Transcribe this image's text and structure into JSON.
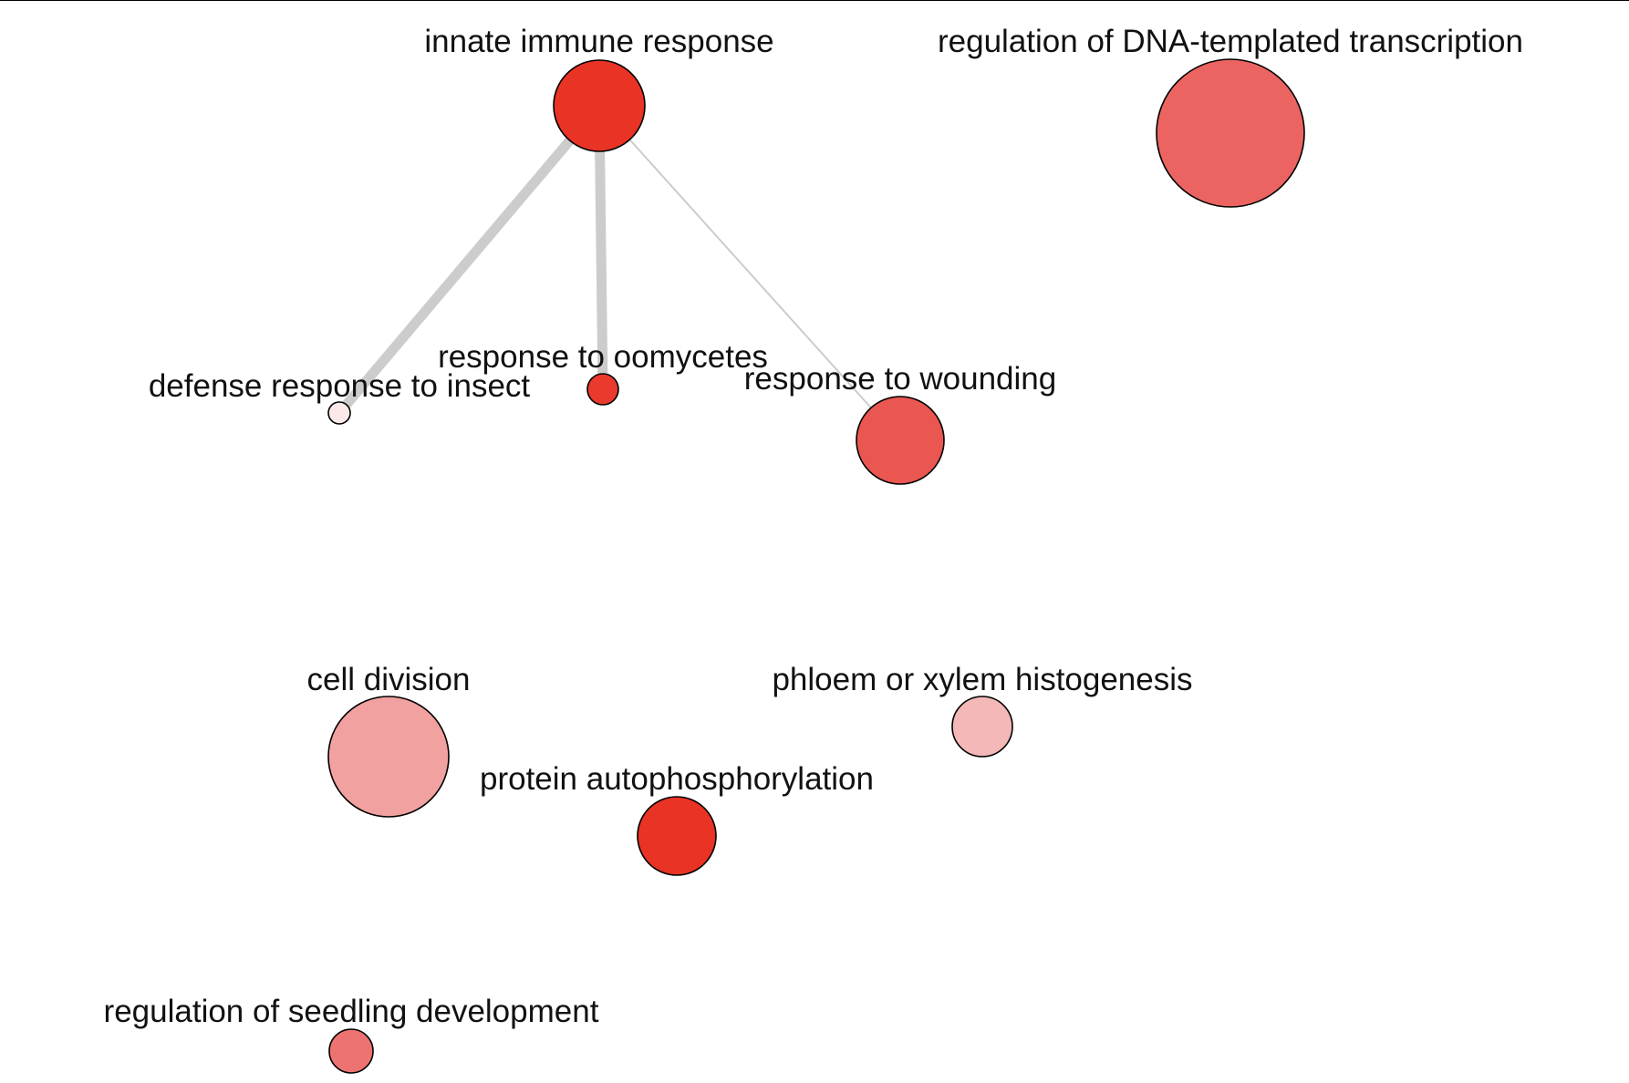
{
  "diagram": {
    "type": "network",
    "nodes": [
      {
        "id": "innate-immune-response",
        "label": "innate immune response",
        "color": "#e93325"
      },
      {
        "id": "regulation-of-dna-templated-transcription",
        "label": "regulation of DNA-templated transcription",
        "color": "#ec6461"
      },
      {
        "id": "defense-response-to-insect",
        "label": "defense response to insect",
        "color": "#fbe8e8"
      },
      {
        "id": "response-to-oomycetes",
        "label": "response to oomycetes",
        "color": "#ea3a2d"
      },
      {
        "id": "response-to-wounding",
        "label": "response to wounding",
        "color": "#ea5650"
      },
      {
        "id": "cell-division",
        "label": "cell division",
        "color": "#f1a19f"
      },
      {
        "id": "phloem-or-xylem-histogenesis",
        "label": "phloem or xylem histogenesis",
        "color": "#f3b8b7"
      },
      {
        "id": "protein-autophosphorylation",
        "label": "protein autophosphorylation",
        "color": "#e93325"
      },
      {
        "id": "regulation-of-seedling-development",
        "label": "regulation of seedling development",
        "color": "#ed7372"
      }
    ],
    "edges": [
      {
        "source": "innate-immune-response",
        "target": "defense-response-to-insect",
        "weight": "heavy"
      },
      {
        "source": "innate-immune-response",
        "target": "response-to-oomycetes",
        "weight": "heavy"
      },
      {
        "source": "innate-immune-response",
        "target": "response-to-wounding",
        "weight": "light"
      }
    ]
  }
}
